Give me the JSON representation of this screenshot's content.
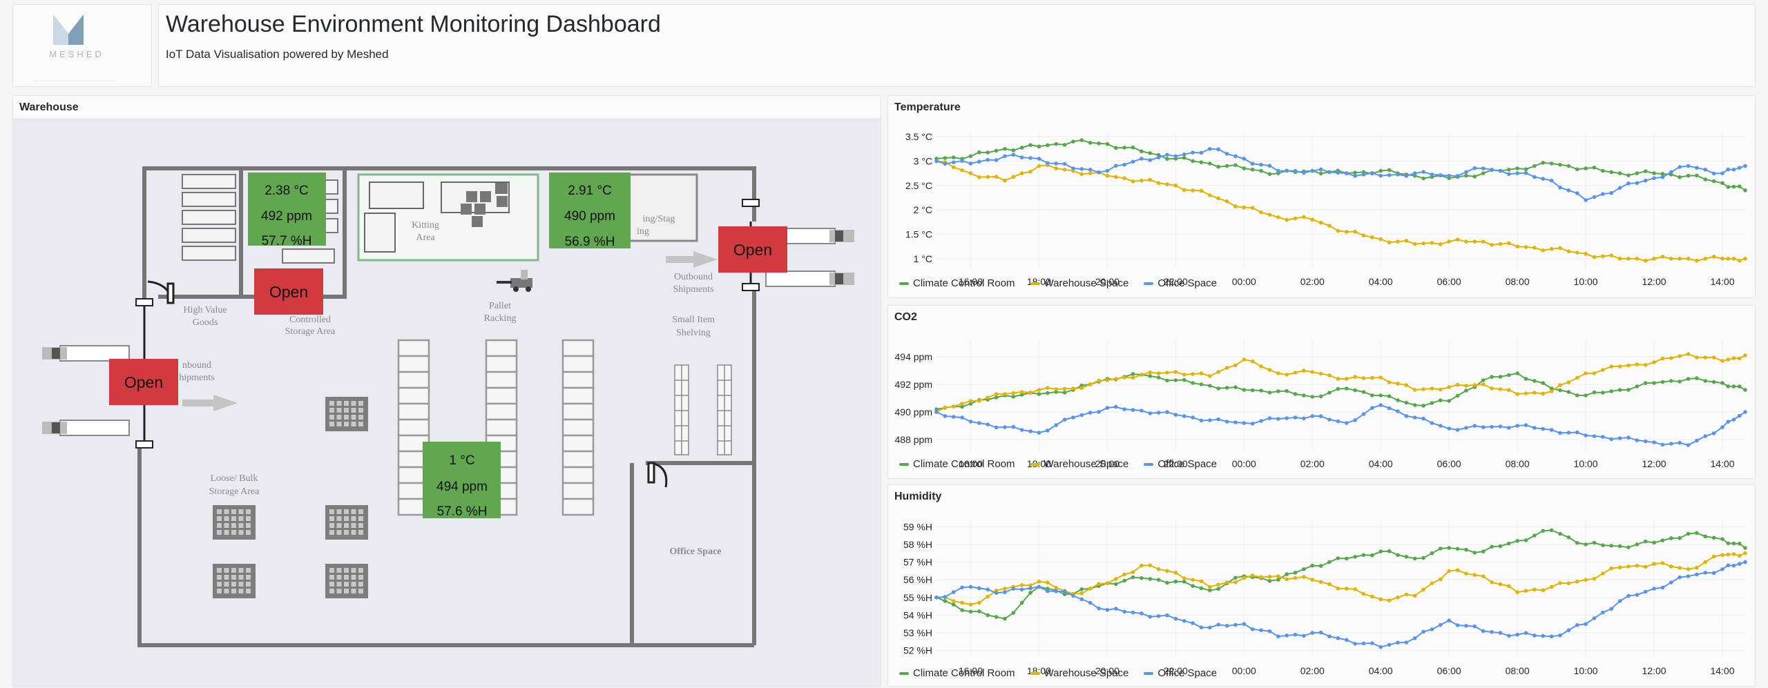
{
  "header": {
    "logo_text": "MESHED",
    "title": "Warehouse Environment Monitoring Dashboard",
    "subtitle": "IoT Data Visualisation powered by Meshed"
  },
  "colors": {
    "green": "#56a64b",
    "yellow": "#e0b400",
    "blue": "#5794f2",
    "sensor_box": "#60a74f",
    "door_box": "#d13b40"
  },
  "warehouse": {
    "title": "Warehouse",
    "labels": {
      "high_value": [
        "High Value",
        "Goods"
      ],
      "controlled": [
        "Controlled",
        "Storage Area"
      ],
      "kitting": [
        "Kitting",
        "Area"
      ],
      "staging": [
        "ing/Stag",
        "ing"
      ],
      "outbound": [
        "Outbound",
        "Shipments"
      ],
      "pallet": [
        "Pallet",
        "Racking"
      ],
      "small_item": [
        "Small Item",
        "Shelving"
      ],
      "inbound": [
        "nbound",
        "hipments"
      ],
      "loose_bulk": [
        "Loose/ Bulk",
        "Storage Area"
      ],
      "office": "Office Space"
    },
    "sensors": [
      {
        "temp": "2.38 °C",
        "co2": "492 ppm",
        "hum": "57.7 %H"
      },
      {
        "temp": "2.91 °C",
        "co2": "490 ppm",
        "hum": "56.9 %H"
      },
      {
        "temp": "1 °C",
        "co2": "494 ppm",
        "hum": "57.6 %H"
      }
    ],
    "doors": [
      "Open",
      "Open",
      "Open"
    ]
  },
  "time_ticks": [
    "16:00",
    "18:00",
    "20:00",
    "22:00",
    "00:00",
    "02:00",
    "04:00",
    "06:00",
    "08:00",
    "10:00",
    "12:00",
    "14:00"
  ],
  "legend": [
    "Climate Control Room",
    "Warehouse Space",
    "Office Space"
  ],
  "chart_data": [
    {
      "type": "line",
      "title": "Temperature",
      "x": [
        "15:00",
        "16:00",
        "17:00",
        "18:00",
        "19:00",
        "20:00",
        "21:00",
        "22:00",
        "23:00",
        "00:00",
        "01:00",
        "02:00",
        "03:00",
        "04:00",
        "05:00",
        "06:00",
        "07:00",
        "08:00",
        "09:00",
        "10:00",
        "11:00",
        "12:00",
        "13:00",
        "14:00",
        "14:40"
      ],
      "ylim": [
        0.8,
        3.6
      ],
      "yticks": [
        "1 °C",
        "1.5 °C",
        "2 °C",
        "2.5 °C",
        "3 °C",
        "3.5 °C"
      ],
      "ytick_values": [
        1,
        1.5,
        2,
        2.5,
        3,
        3.5
      ],
      "series": [
        {
          "name": "Climate Control Room",
          "values": [
            3.05,
            3.1,
            3.25,
            3.3,
            3.4,
            3.35,
            3.2,
            3.05,
            2.95,
            2.85,
            2.75,
            2.8,
            2.75,
            2.8,
            2.7,
            2.65,
            2.75,
            2.85,
            2.95,
            2.85,
            2.75,
            2.75,
            2.7,
            2.55,
            2.4
          ]
        },
        {
          "name": "Warehouse Space",
          "values": [
            3.0,
            2.75,
            2.6,
            2.9,
            2.8,
            2.7,
            2.6,
            2.5,
            2.3,
            2.05,
            1.85,
            1.8,
            1.55,
            1.4,
            1.3,
            1.35,
            1.35,
            1.25,
            1.2,
            1.1,
            1.0,
            1.0,
            1.0,
            1.0,
            1.0
          ]
        },
        {
          "name": "Office Space",
          "values": [
            3.0,
            2.95,
            3.1,
            3.05,
            2.85,
            2.8,
            3.05,
            3.1,
            3.25,
            3.05,
            2.8,
            2.8,
            2.75,
            2.7,
            2.75,
            2.7,
            2.85,
            2.75,
            2.6,
            2.2,
            2.45,
            2.65,
            2.9,
            2.75,
            2.9
          ]
        }
      ]
    },
    {
      "type": "line",
      "title": "CO2",
      "x": [
        "15:00",
        "16:00",
        "17:00",
        "18:00",
        "19:00",
        "20:00",
        "21:00",
        "22:00",
        "23:00",
        "00:00",
        "01:00",
        "02:00",
        "03:00",
        "04:00",
        "05:00",
        "06:00",
        "07:00",
        "08:00",
        "09:00",
        "10:00",
        "11:00",
        "12:00",
        "13:00",
        "14:00",
        "14:40"
      ],
      "ylim": [
        487.2,
        495.2
      ],
      "yticks": [
        "488 ppm",
        "490 ppm",
        "492 ppm",
        "494 ppm"
      ],
      "ytick_values": [
        488,
        490,
        492,
        494
      ],
      "series": [
        {
          "name": "Climate Control Room",
          "values": [
            490.2,
            490.6,
            491.2,
            491.3,
            491.6,
            492.4,
            492.7,
            492.3,
            491.9,
            491.6,
            491.5,
            491.1,
            491.7,
            491.2,
            490.5,
            490.8,
            492.3,
            492.8,
            491.7,
            491.2,
            491.6,
            492.1,
            492.4,
            492.1,
            491.6
          ]
        },
        {
          "name": "Warehouse Space",
          "values": [
            490.0,
            490.8,
            491.3,
            491.6,
            491.7,
            492.3,
            492.7,
            492.9,
            492.6,
            493.8,
            492.8,
            492.9,
            492.4,
            492.5,
            491.6,
            491.8,
            492.0,
            491.3,
            491.5,
            492.8,
            493.3,
            493.6,
            494.2,
            493.7,
            494.1
          ]
        },
        {
          "name": "Office Space",
          "values": [
            490.0,
            489.3,
            488.9,
            488.5,
            489.6,
            490.3,
            490.1,
            489.8,
            489.4,
            489.2,
            489.5,
            489.7,
            489.2,
            490.5,
            489.6,
            488.8,
            488.9,
            489.0,
            488.7,
            488.3,
            488.1,
            487.8,
            487.6,
            488.9,
            490.0
          ]
        }
      ]
    },
    {
      "type": "line",
      "title": "Humidity",
      "x": [
        "15:00",
        "16:00",
        "17:00",
        "18:00",
        "19:00",
        "20:00",
        "21:00",
        "22:00",
        "23:00",
        "00:00",
        "01:00",
        "02:00",
        "03:00",
        "04:00",
        "05:00",
        "06:00",
        "07:00",
        "08:00",
        "09:00",
        "10:00",
        "11:00",
        "12:00",
        "13:00",
        "14:00",
        "14:40"
      ],
      "ylim": [
        51.6,
        59.4
      ],
      "yticks": [
        "52 %H",
        "53 %H",
        "54 %H",
        "55 %H",
        "56 %H",
        "57 %H",
        "58 %H",
        "59 %H"
      ],
      "ytick_values": [
        52,
        53,
        54,
        55,
        56,
        57,
        58,
        59
      ],
      "series": [
        {
          "name": "Climate Control Room",
          "values": [
            55.0,
            54.2,
            53.8,
            55.6,
            55.2,
            55.8,
            56.1,
            55.9,
            55.4,
            56.2,
            56.0,
            56.8,
            57.2,
            57.6,
            57.2,
            57.8,
            57.6,
            58.2,
            58.8,
            58.0,
            57.9,
            58.1,
            58.6,
            58.3,
            57.8
          ]
        },
        {
          "name": "Warehouse Space",
          "values": [
            55.0,
            54.6,
            55.5,
            55.9,
            55.2,
            55.8,
            56.8,
            56.4,
            55.6,
            56.1,
            56.2,
            56.0,
            55.5,
            54.9,
            55.1,
            56.5,
            56.2,
            55.3,
            55.6,
            56.0,
            56.7,
            56.9,
            56.6,
            57.4,
            57.5
          ]
        },
        {
          "name": "Office Space",
          "values": [
            55.0,
            55.6,
            55.3,
            55.6,
            55.1,
            54.3,
            54.1,
            53.8,
            53.3,
            53.5,
            52.8,
            53.0,
            52.6,
            52.2,
            52.7,
            53.7,
            53.1,
            52.9,
            52.8,
            53.5,
            54.8,
            55.5,
            56.2,
            56.6,
            57.0
          ]
        }
      ]
    }
  ]
}
